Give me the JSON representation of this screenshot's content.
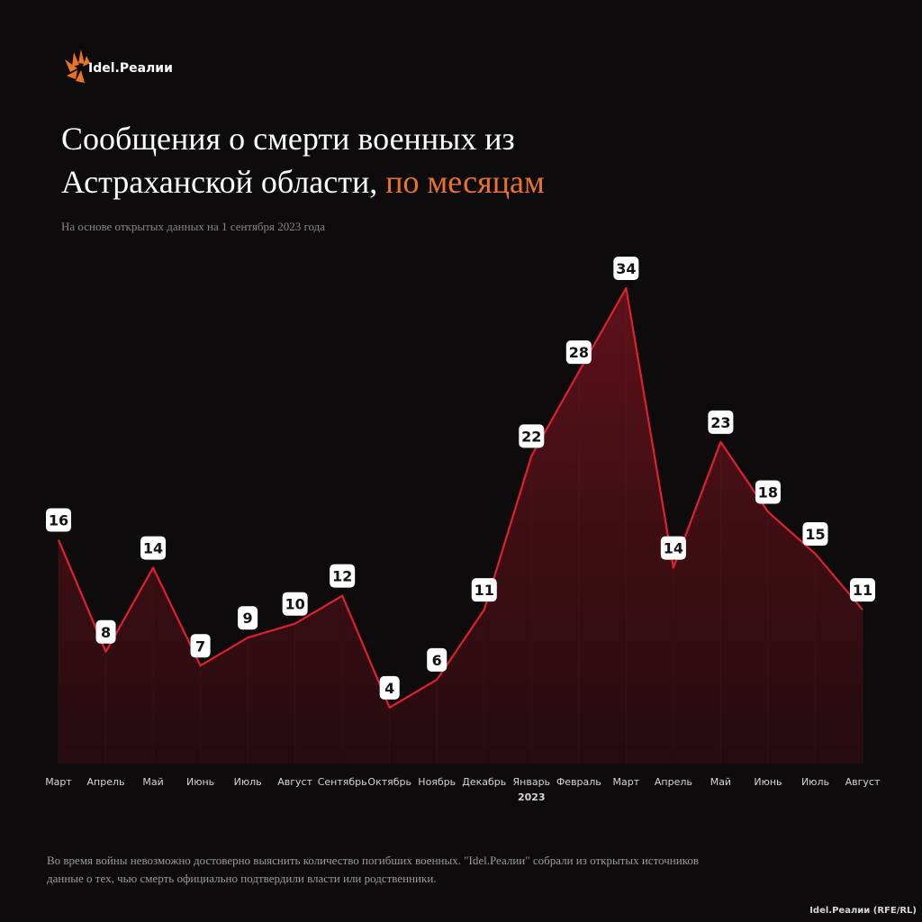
{
  "logo": "Idel.Реалии",
  "credit": "Idel.Реалии (RFE/RL)",
  "footnote": [
    "Во время войны невозможно достоверно выяснить количество погибших военных. \"Idel.Реалии\" собрали из открытых источников",
    "данные о тех, чью смерть официально подтвердили власти или родственники."
  ],
  "chart_data": {
    "type": "area",
    "title": [
      "Сообщения о смерти военных из",
      "Астраханской области,",
      "по месяцам"
    ],
    "title_color": "#ffffff",
    "title_highlight_color": "#e8742a",
    "subtitle": "На основе открытых данных на 1 сентября 2023 года",
    "categories": [
      "Март",
      "Апрель",
      "Май",
      "Июнь",
      "Июль",
      "Август",
      "Сентябрь",
      "Октябрь",
      "Ноябрь",
      "Декабрь",
      "Январь",
      "Февраль",
      "Март",
      "Апрель",
      "Май",
      "Июнь",
      "Июль",
      "Август"
    ],
    "x_secondary_labels": [
      null,
      null,
      null,
      null,
      null,
      null,
      null,
      null,
      null,
      null,
      "2023",
      null,
      null,
      null,
      null,
      null,
      null,
      null
    ],
    "series": [
      {
        "color": "#e0202e",
        "values": [
          16,
          8,
          14,
          7,
          9,
          10,
          12,
          4,
          6,
          11,
          22,
          28,
          34,
          14,
          23,
          18,
          15,
          11
        ]
      }
    ],
    "ylim": [
      0,
      34
    ]
  }
}
